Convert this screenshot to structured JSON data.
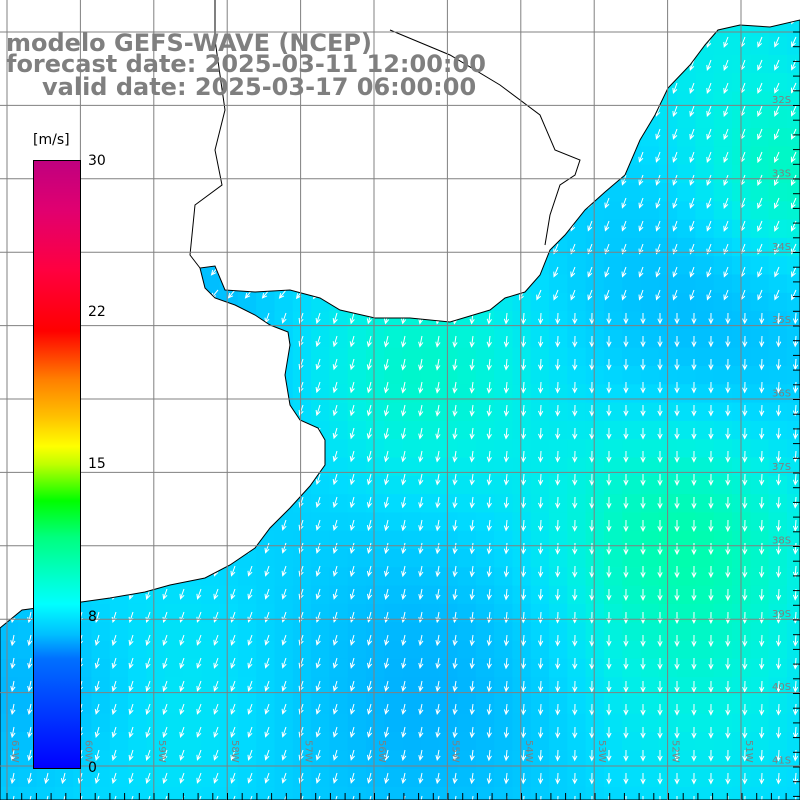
{
  "title": {
    "line1": "modelo GEFS-WAVE (NCEP)",
    "line2": "forecast date: 2025-03-11 12:00:00",
    "line3": "valid date: 2025-03-17 06:00:00"
  },
  "colorbar": {
    "units": "[m/s]",
    "min": 0,
    "max": 30,
    "ticks": [
      "30",
      "22",
      "15",
      "8",
      "0"
    ],
    "tick_values": [
      30,
      22,
      15,
      8,
      0
    ]
  },
  "map": {
    "latitude_labels": [
      "32S",
      "33S",
      "34S",
      "35S",
      "36S",
      "37S",
      "38S",
      "39S",
      "40S",
      "41S"
    ],
    "longitude_labels": [
      "61W",
      "60W",
      "59W",
      "58W",
      "57W",
      "56W",
      "55W",
      "54W",
      "53W",
      "52W",
      "51W"
    ],
    "field": "wind speed and direction",
    "colors": {
      "land": "#ffffff",
      "coast": "#000000",
      "grid": "#808080",
      "arrows": "#ffffff",
      "label": "#7f7f7f"
    }
  }
}
